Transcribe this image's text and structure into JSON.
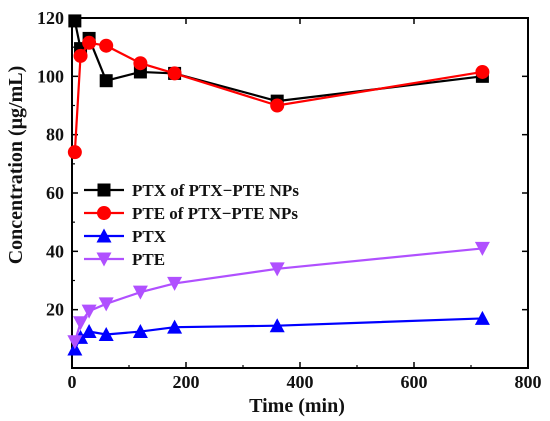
{
  "chart_data": {
    "type": "line",
    "xlabel": "Time (min)",
    "ylabel": "Concentration (μg/mL)",
    "xlim": [
      0,
      800
    ],
    "ylim": [
      0,
      120
    ],
    "x_ticks": [
      "0",
      "200",
      "400",
      "600",
      "800"
    ],
    "y_ticks": [
      "20",
      "40",
      "60",
      "80",
      "100",
      "120"
    ],
    "legend_position": "middle-left",
    "grid": false,
    "series": [
      {
        "name": "PTX of PTX−PTE NPs",
        "color": "#000000",
        "marker": "square",
        "x": [
          5,
          15,
          30,
          60,
          120,
          180,
          360,
          720
        ],
        "y": [
          119,
          109.5,
          113,
          98.5,
          101.5,
          101,
          91.5,
          100
        ]
      },
      {
        "name": "PTE of PTX−PTE NPs",
        "color": "#ff0000",
        "marker": "circle",
        "x": [
          5,
          15,
          30,
          60,
          120,
          180,
          360,
          720
        ],
        "y": [
          74,
          107,
          111.5,
          110.5,
          104.5,
          101,
          90,
          101.5
        ]
      },
      {
        "name": "PTX",
        "color": "#0000ff",
        "marker": "triangle-up",
        "x": [
          5,
          15,
          30,
          60,
          120,
          180,
          360,
          720
        ],
        "y": [
          6.5,
          10.5,
          12.5,
          11.5,
          12.5,
          14,
          14.5,
          17
        ]
      },
      {
        "name": "PTE",
        "color": "#b050ff",
        "marker": "triangle-down",
        "x": [
          5,
          15,
          30,
          60,
          120,
          180,
          360,
          720
        ],
        "y": [
          9,
          15.5,
          19.5,
          22,
          26,
          29,
          34,
          41
        ]
      }
    ]
  }
}
